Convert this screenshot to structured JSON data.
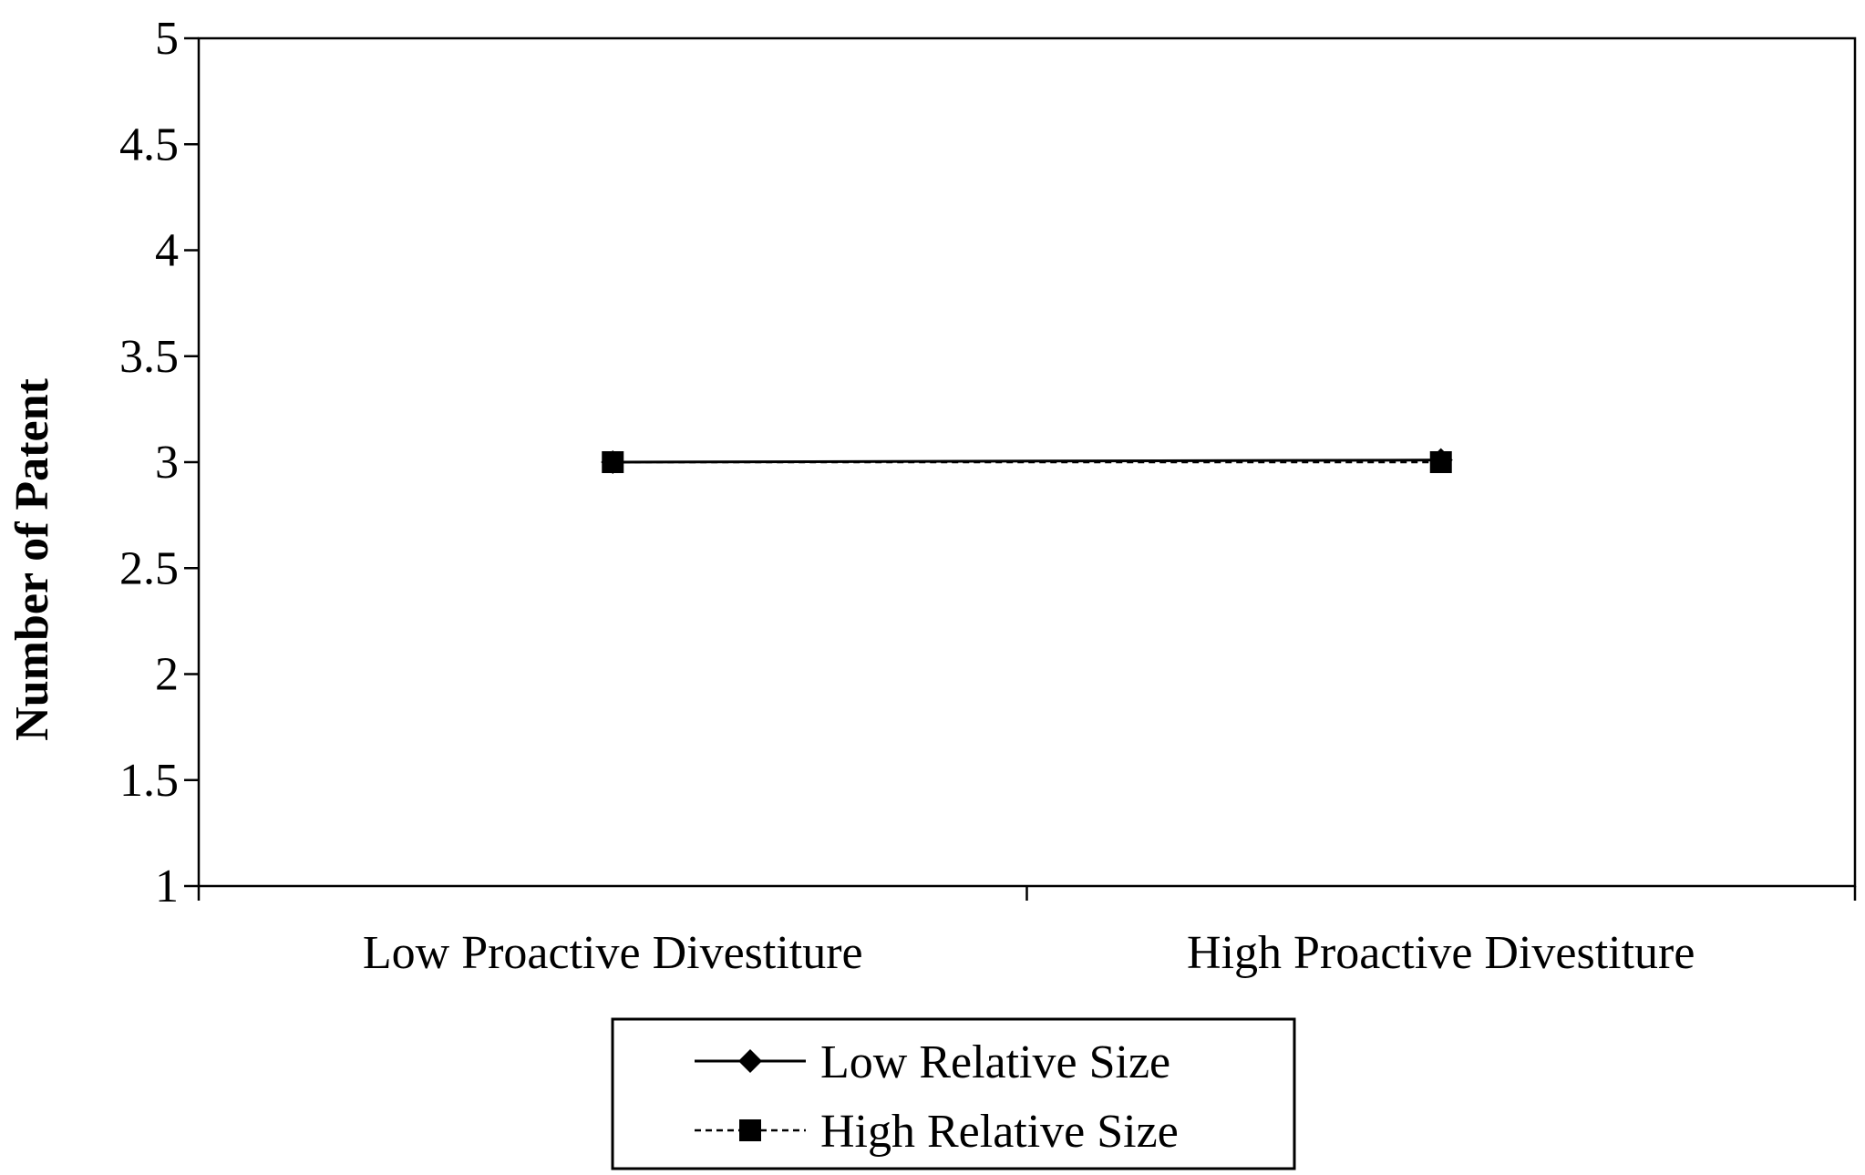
{
  "chart_data": {
    "type": "line",
    "title": "",
    "xlabel": "",
    "ylabel": "Number of Patent",
    "categories": [
      "Low Proactive Divestiture",
      "High Proactive Divestiture"
    ],
    "yticks": [
      "1",
      "1.5",
      "2",
      "2.5",
      "3",
      "3.5",
      "4",
      "4.5",
      "5"
    ],
    "ylim": [
      1,
      5
    ],
    "grid": false,
    "legend_position": "bottom",
    "series": [
      {
        "name": "Low Relative Size",
        "values": [
          3.0,
          3.01
        ],
        "marker": "diamond",
        "line_style": "solid",
        "color": "#000000"
      },
      {
        "name": "High Relative Size",
        "values": [
          3.0,
          3.0
        ],
        "marker": "square",
        "line_style": "dashed",
        "color": "#000000"
      }
    ]
  }
}
